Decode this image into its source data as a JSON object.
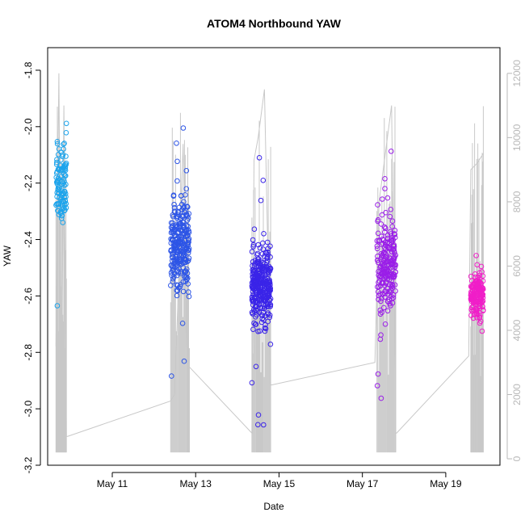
{
  "chart_data": {
    "type": "scatter",
    "title": "ATOM4 Northbound YAW",
    "xlabel": "Date",
    "ylabel": "YAW",
    "x_tick_labels": [
      "May 11",
      "May 13",
      "May 15",
      "May 17",
      "May 19"
    ],
    "x_tick_days": [
      11,
      13,
      15,
      17,
      19
    ],
    "xlim_days": [
      9.45,
      20.3
    ],
    "ylim": [
      -3.2,
      -1.72
    ],
    "y_ticks": [
      -1.8,
      -2.0,
      -2.2,
      -2.4,
      -2.6,
      -2.8,
      -3.0,
      -3.2
    ],
    "y_tick_labels": [
      "-1.8",
      "-2.0",
      "-2.2",
      "-2.4",
      "-2.6",
      "-2.8",
      "-3.0",
      "-3.2"
    ],
    "right_axis": {
      "color": "#b8b8b8",
      "ylim": [
        -200,
        12800
      ],
      "ticks": [
        0,
        2000,
        4000,
        6000,
        8000,
        10000,
        12000
      ],
      "tick_labels": [
        "0",
        "2000",
        "4000",
        "6000",
        "8000",
        "10000",
        "12000"
      ]
    },
    "legend": "none",
    "grid": false,
    "clusters": [
      {
        "day_start": 9.65,
        "day_end": 9.9,
        "yaw_center": -2.2,
        "yaw_spread": 0.13,
        "n": 110,
        "color": "#1ca4ec"
      },
      {
        "day_start": 12.4,
        "day_end": 12.85,
        "yaw_center": -2.42,
        "yaw_spread": 0.14,
        "n": 260,
        "color": "#2d55e6"
      },
      {
        "day_start": 14.35,
        "day_end": 14.8,
        "yaw_center": -2.56,
        "yaw_spread": 0.12,
        "n": 320,
        "color": "#3a24e8"
      },
      {
        "day_start": 17.35,
        "day_end": 17.8,
        "yaw_center": -2.48,
        "yaw_spread": 0.14,
        "n": 220,
        "color": "#9a1ee8"
      },
      {
        "day_start": 19.6,
        "day_end": 19.9,
        "yaw_center": -2.6,
        "yaw_spread": 0.07,
        "n": 170,
        "color": "#f01ec8"
      }
    ],
    "count_series": {
      "name": "",
      "color": "#c8c8c8",
      "points": [
        [
          9.65,
          3500
        ],
        [
          9.72,
          12000
        ],
        [
          9.78,
          1500
        ],
        [
          9.84,
          11000
        ],
        [
          9.9,
          700
        ],
        [
          9.93,
          700
        ],
        [
          12.4,
          1800
        ],
        [
          12.5,
          2000
        ],
        [
          12.7,
          9800
        ],
        [
          12.8,
          2900
        ],
        [
          12.82,
          2900
        ],
        [
          14.35,
          800
        ],
        [
          14.4,
          9300
        ],
        [
          14.5,
          10000
        ],
        [
          14.65,
          11500
        ],
        [
          14.8,
          2300
        ],
        [
          14.82,
          2300
        ],
        [
          17.3,
          3000
        ],
        [
          17.4,
          8000
        ],
        [
          17.5,
          9000
        ],
        [
          17.7,
          11000
        ],
        [
          17.8,
          800
        ],
        [
          17.82,
          800
        ],
        [
          19.55,
          3200
        ],
        [
          19.6,
          9000
        ],
        [
          19.75,
          9200
        ],
        [
          19.9,
          9500
        ]
      ]
    }
  }
}
